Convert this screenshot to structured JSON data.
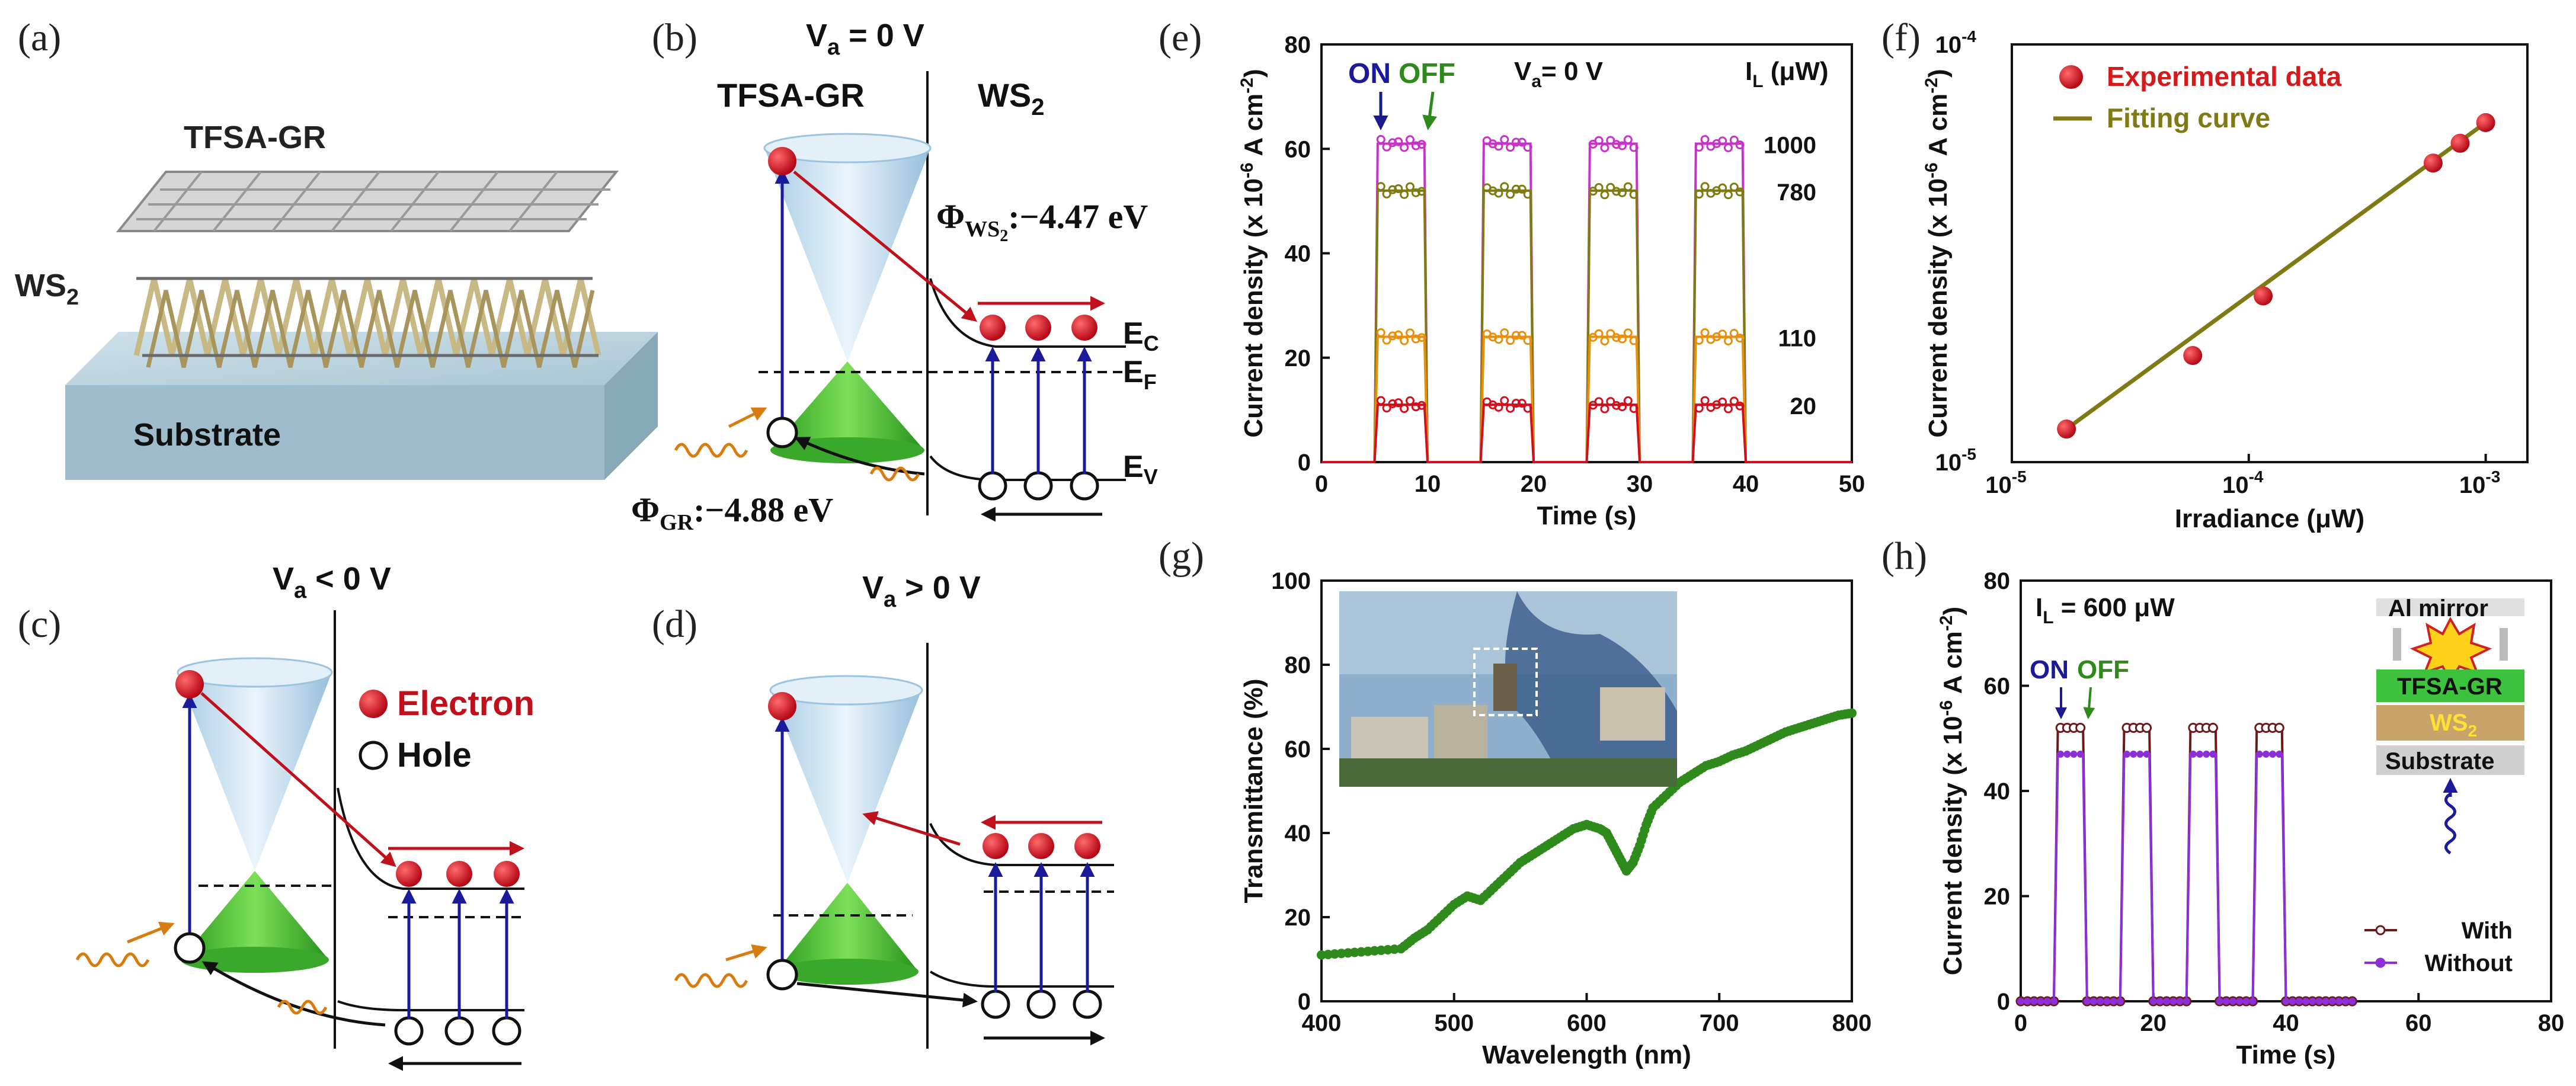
{
  "panels": {
    "a": {
      "label": "(a)",
      "top_layer": "TFSA-GR",
      "bottom_layer": "WS",
      "bottom_layer_sub": "2",
      "substrate": "Substrate"
    },
    "b": {
      "label": "(b)",
      "bias": "V",
      "bias_sub": "a",
      "bias_value": " = 0 V",
      "left_material": "TFSA-GR",
      "right_material": "WS",
      "right_material_sub": "2",
      "phi_ws2": "Φ",
      "phi_ws2_sub": "WS",
      "phi_ws2_sub2": "2",
      "phi_ws2_value": ":−4.47 eV",
      "phi_gr": "Φ",
      "phi_gr_sub": "GR",
      "phi_gr_value": ":−4.88 eV",
      "ec": "E",
      "ec_sub": "C",
      "ef": "E",
      "ef_sub": "F",
      "ev": "E",
      "ev_sub": "V"
    },
    "c": {
      "label": "(c)",
      "bias": "V",
      "bias_sub": "a",
      "bias_value": " < 0 V",
      "legend_electron": "Electron",
      "legend_hole": "Hole"
    },
    "d": {
      "label": "(d)",
      "bias": "V",
      "bias_sub": "a",
      "bias_value": " > 0 V"
    },
    "e": {
      "label": "(e)",
      "on": "ON",
      "off": "OFF",
      "bias": "V",
      "bias_sub": "a",
      "bias_value": "=  0 V",
      "il_label": "I",
      "il_sub": "L",
      "il_unit": " (μW)"
    },
    "f": {
      "label": "(f)",
      "legend_exp": "Experimental data",
      "legend_fit": "Fitting curve"
    },
    "g": {
      "label": "(g)"
    },
    "h": {
      "label": "(h)",
      "il": "I",
      "il_sub": "L",
      "il_value": " = 600 μW",
      "on": "ON",
      "off": "OFF",
      "mirror": "Al mirror",
      "layer_gr": "TFSA-GR",
      "layer_ws2": "WS",
      "layer_ws2_sub": "2",
      "layer_sub": "Substrate"
    }
  },
  "chart_data": [
    {
      "panel": "e",
      "type": "line",
      "xlabel": "Time (s)",
      "ylabel": "Current density (x 10^-6 A cm^-2)",
      "ylabel_parts": [
        "Current density (x 10",
        "-6",
        " A cm",
        "-2",
        ")"
      ],
      "xlim": [
        0,
        50
      ],
      "ylim": [
        0,
        80
      ],
      "xticks": [
        0,
        10,
        20,
        30,
        40,
        50
      ],
      "yticks": [
        0,
        20,
        40,
        60,
        80
      ],
      "pulses_on": [
        [
          5,
          10
        ],
        [
          15,
          20
        ],
        [
          25,
          30
        ],
        [
          35,
          40
        ]
      ],
      "series": [
        {
          "name": "1000",
          "on_value": 61,
          "color": "#c832c8"
        },
        {
          "name": "780",
          "on_value": 52,
          "color": "#807a12"
        },
        {
          "name": "110",
          "on_value": 24,
          "color": "#e8900c"
        },
        {
          "name": "20",
          "on_value": 11,
          "color": "#d0101c"
        }
      ]
    },
    {
      "panel": "f",
      "type": "scatter",
      "xlabel": "Irradiance (μW)",
      "ylabel": "Current density (x 10^-6 A cm^-2)",
      "ylabel_parts": [
        "Current density (x 10",
        "-6",
        " A cm",
        "-2",
        ")"
      ],
      "scale": "log-log",
      "xlim": [
        1e-05,
        0.0015
      ],
      "ylim": [
        1e-05,
        0.0001
      ],
      "xticks": [
        "10",
        "10",
        "10"
      ],
      "xtick_exps": [
        "-5",
        "-4",
        "-3"
      ],
      "xtick_values": [
        1e-05,
        0.0001,
        0.001
      ],
      "yticks": [
        "10",
        "10"
      ],
      "ytick_exps": [
        "-5",
        "-4"
      ],
      "ytick_values": [
        1e-05,
        0.0001
      ],
      "series": [
        {
          "name": "Experimental data",
          "x": [
            1.7e-05,
            5.8e-05,
            0.000115,
            0.0006,
            0.00078,
            0.001
          ],
          "y": [
            1.2e-05,
            1.8e-05,
            2.5e-05,
            5.2e-05,
            5.8e-05,
            6.5e-05
          ],
          "color": "#d41a1a"
        },
        {
          "name": "Fitting curve",
          "x": [
            1.7e-05,
            0.001
          ],
          "y": [
            1.2e-05,
            6.5e-05
          ],
          "color": "#7f7a14"
        }
      ]
    },
    {
      "panel": "g",
      "type": "scatter",
      "xlabel": "Wavelength (nm)",
      "ylabel": "Transmittance (%)",
      "xlim": [
        400,
        800
      ],
      "ylim": [
        0,
        100
      ],
      "xticks": [
        400,
        500,
        600,
        700,
        800
      ],
      "yticks": [
        0,
        20,
        40,
        60,
        80,
        100
      ],
      "series": [
        {
          "name": "",
          "color": "#2e8a1a",
          "x": [
            400,
            420,
            440,
            460,
            470,
            480,
            490,
            500,
            510,
            520,
            530,
            540,
            550,
            560,
            570,
            580,
            590,
            600,
            610,
            615,
            620,
            625,
            630,
            635,
            640,
            645,
            650,
            660,
            670,
            680,
            690,
            700,
            710,
            720,
            730,
            740,
            750,
            760,
            770,
            780,
            790,
            800
          ],
          "y": [
            11,
            11.5,
            12,
            12.5,
            15,
            17,
            20,
            23,
            25,
            24,
            27,
            30,
            33,
            35,
            37,
            39,
            41,
            42,
            41,
            40,
            37,
            34,
            31,
            33,
            37,
            42,
            46,
            49,
            52,
            54,
            56,
            57,
            58.5,
            59.5,
            61,
            62.5,
            64,
            65,
            66,
            67,
            68,
            68.5
          ]
        }
      ]
    },
    {
      "panel": "h",
      "type": "line",
      "xlabel": "Time (s)",
      "ylabel": "Current density (x 10^-6 A cm^-2)",
      "ylabel_parts": [
        "Current density (x 10",
        "-6",
        " A cm",
        "-2",
        ")"
      ],
      "xlim": [
        0,
        80
      ],
      "ylim": [
        0,
        80
      ],
      "xticks": [
        0,
        20,
        40,
        60,
        80
      ],
      "yticks": [
        0,
        20,
        40,
        60,
        80
      ],
      "pulses_on": [
        [
          5,
          10
        ],
        [
          15,
          20
        ],
        [
          25,
          30
        ],
        [
          35,
          40
        ]
      ],
      "data_end": 50,
      "series": [
        {
          "name": "With",
          "on_value": 52,
          "color": "#6a1a1a"
        },
        {
          "name": "Without",
          "on_value": 47,
          "color": "#8c2fd8"
        }
      ]
    }
  ]
}
